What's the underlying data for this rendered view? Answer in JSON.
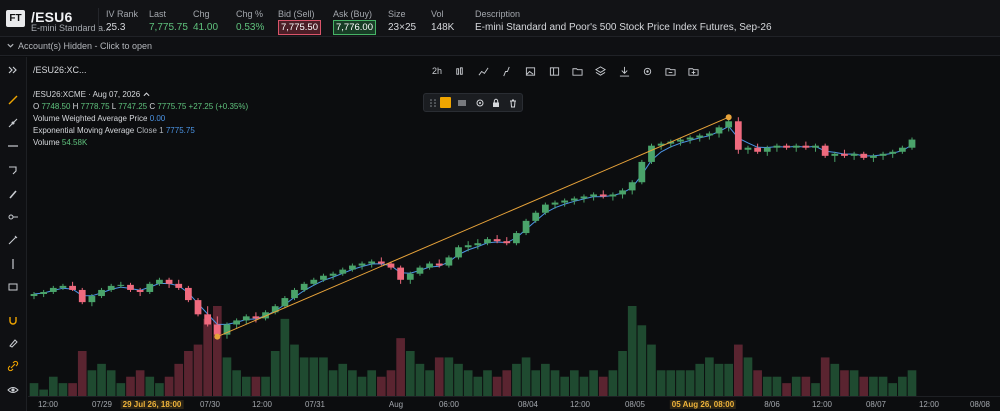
{
  "quote": {
    "logo": "FT",
    "symbol": "/ESU6",
    "short_desc": "E-mini Standard a...",
    "iv_rank_label": "IV Rank",
    "iv_rank": "25.3",
    "last_label": "Last",
    "last": "7,775.75",
    "chg_label": "Chg",
    "chg": "41.00",
    "chg_pct_label": "Chg %",
    "chg_pct": "0.53%",
    "bid_label": "Bid (Sell)",
    "bid": "7,775.50",
    "ask_label": "Ask (Buy)",
    "ask": "7,776.00",
    "size_label": "Size",
    "size": "23×25",
    "vol_label": "Vol",
    "vol": "148K",
    "desc_label": "Description",
    "desc": "E-mini Standard and Poor's 500 Stock Price Index Futures, Sep-26",
    "colors": {
      "up": "#5fc27d",
      "bid_box": "#d9546a",
      "ask_box": "#46b366"
    }
  },
  "account": {
    "text": "Account(s) Hidden - Click to open"
  },
  "toolbar": {
    "symbol_field": "/ESU26:XC...",
    "interval": "2h",
    "icons": [
      "candles-icon",
      "line-chart-icon",
      "indicator-icon",
      "image-icon",
      "layout-icon",
      "folder-icon",
      "layers-icon",
      "download-icon",
      "settings-icon",
      "folder-open-icon",
      "folder-add-icon"
    ]
  },
  "left_tools": [
    "collapse-icon",
    "line-tool-icon",
    "path-tool-icon",
    "horizontal-line-icon",
    "measure-icon",
    "brush-icon",
    "node-tool-icon",
    "pen-icon",
    "vertical-line-icon",
    "callout-icon",
    "magnet-icon",
    "eraser-icon",
    "link-icon",
    "eye-icon"
  ],
  "legend": {
    "title": "/ESU26:XCME · Aug 07, 2026",
    "o_label": "O",
    "o": "7748.50",
    "h_label": "H",
    "h": "7778.75",
    "l_label": "L",
    "l": "7747.25",
    "c_label": "C",
    "c": "7775.75",
    "change": "+27.25 (+0.35%)",
    "vwap_label": "Volume Weighted Average Price",
    "vwap": "0.00",
    "ema_label": "Exponential Moving Average",
    "ema_params": "Close  1",
    "ema": "7775.75",
    "volume_label": "Volume",
    "volume": "54.58K"
  },
  "drawing_toolbar": {
    "color": "#f0a500",
    "icons": [
      "drag-handle-icon",
      "color-swatch-icon",
      "line-style-icon",
      "settings-icon",
      "lock-icon",
      "trash-icon"
    ]
  },
  "time_axis": [
    {
      "label": "12:00"
    },
    {
      "label": "07/29"
    },
    {
      "label": "29 Jul 26, 18:00",
      "highlight": true
    },
    {
      "label": "07/30"
    },
    {
      "label": "12:00"
    },
    {
      "label": "07/31"
    },
    {
      "label": "Aug"
    },
    {
      "label": "06:00"
    },
    {
      "label": "08/04"
    },
    {
      "label": "12:00"
    },
    {
      "label": "08/05"
    },
    {
      "label": "05 Aug 26, 08:00",
      "highlight": true
    },
    {
      "label": "8/06"
    },
    {
      "label": "12:00"
    },
    {
      "label": "08/07"
    },
    {
      "label": "12:00"
    },
    {
      "label": "08/08"
    }
  ],
  "chart_data": {
    "type": "candlestick",
    "colors": {
      "up": "#4aa36a",
      "down": "#ef6a7e",
      "vol_up": "#1f4a30",
      "vol_down": "#5a2430",
      "trendline": "#e8a33a",
      "ema": "#4c95e6"
    },
    "candles": [
      [
        100,
        104,
        97,
        102,
        2
      ],
      [
        102,
        106,
        99,
        104,
        1
      ],
      [
        104,
        110,
        102,
        108,
        3
      ],
      [
        108,
        112,
        106,
        110,
        2
      ],
      [
        110,
        114,
        105,
        106,
        2
      ],
      [
        106,
        108,
        92,
        94,
        7
      ],
      [
        94,
        102,
        90,
        100,
        4
      ],
      [
        100,
        108,
        98,
        106,
        5
      ],
      [
        106,
        112,
        104,
        110,
        4
      ],
      [
        110,
        114,
        108,
        111,
        2
      ],
      [
        111,
        113,
        104,
        106,
        3
      ],
      [
        106,
        108,
        100,
        104,
        4
      ],
      [
        104,
        114,
        102,
        112,
        3
      ],
      [
        112,
        118,
        110,
        116,
        2
      ],
      [
        116,
        118,
        108,
        112,
        3
      ],
      [
        112,
        116,
        106,
        108,
        5
      ],
      [
        108,
        110,
        94,
        96,
        7
      ],
      [
        96,
        98,
        80,
        82,
        8
      ],
      [
        82,
        90,
        70,
        72,
        12
      ],
      [
        72,
        80,
        60,
        62,
        14
      ],
      [
        62,
        74,
        58,
        72,
        6
      ],
      [
        72,
        78,
        68,
        76,
        4
      ],
      [
        76,
        82,
        72,
        80,
        3
      ],
      [
        80,
        84,
        74,
        78,
        3
      ],
      [
        78,
        86,
        76,
        84,
        3
      ],
      [
        84,
        92,
        82,
        90,
        7
      ],
      [
        90,
        100,
        88,
        98,
        12
      ],
      [
        98,
        108,
        96,
        106,
        8
      ],
      [
        106,
        114,
        104,
        112,
        6
      ],
      [
        112,
        118,
        110,
        116,
        6
      ],
      [
        116,
        122,
        114,
        120,
        6
      ],
      [
        120,
        124,
        116,
        122,
        4
      ],
      [
        122,
        128,
        120,
        126,
        5
      ],
      [
        126,
        132,
        124,
        130,
        4
      ],
      [
        130,
        134,
        126,
        132,
        3
      ],
      [
        132,
        136,
        128,
        134,
        4
      ],
      [
        134,
        138,
        130,
        132,
        3
      ],
      [
        132,
        134,
        126,
        128,
        4
      ],
      [
        128,
        130,
        112,
        116,
        9
      ],
      [
        116,
        124,
        112,
        122,
        7
      ],
      [
        122,
        130,
        120,
        128,
        5
      ],
      [
        128,
        134,
        126,
        132,
        4
      ],
      [
        132,
        136,
        128,
        130,
        6
      ],
      [
        130,
        140,
        128,
        138,
        6
      ],
      [
        138,
        150,
        136,
        148,
        5
      ],
      [
        148,
        154,
        144,
        150,
        4
      ],
      [
        150,
        156,
        146,
        152,
        3
      ],
      [
        152,
        158,
        150,
        156,
        4
      ],
      [
        156,
        160,
        152,
        154,
        3
      ],
      [
        154,
        158,
        150,
        152,
        4
      ],
      [
        152,
        164,
        150,
        162,
        5
      ],
      [
        162,
        176,
        160,
        174,
        6
      ],
      [
        174,
        184,
        172,
        182,
        4
      ],
      [
        182,
        192,
        180,
        190,
        5
      ],
      [
        190,
        194,
        186,
        192,
        4
      ],
      [
        192,
        196,
        188,
        194,
        3
      ],
      [
        194,
        198,
        190,
        196,
        4
      ],
      [
        196,
        200,
        192,
        198,
        3
      ],
      [
        198,
        202,
        194,
        200,
        4
      ],
      [
        200,
        204,
        196,
        198,
        3
      ],
      [
        198,
        202,
        194,
        200,
        4
      ],
      [
        200,
        206,
        196,
        204,
        7
      ],
      [
        204,
        214,
        200,
        212,
        14
      ],
      [
        212,
        234,
        210,
        232,
        11
      ],
      [
        232,
        250,
        230,
        248,
        8
      ],
      [
        248,
        252,
        244,
        250,
        4
      ],
      [
        250,
        254,
        246,
        252,
        4
      ],
      [
        252,
        256,
        248,
        254,
        4
      ],
      [
        254,
        258,
        250,
        256,
        4
      ],
      [
        256,
        260,
        252,
        258,
        5
      ],
      [
        258,
        262,
        254,
        260,
        6
      ],
      [
        260,
        268,
        256,
        266,
        5
      ],
      [
        266,
        274,
        262,
        272,
        5
      ],
      [
        272,
        276,
        240,
        244,
        8
      ],
      [
        244,
        248,
        240,
        246,
        6
      ],
      [
        246,
        250,
        240,
        242,
        4
      ],
      [
        242,
        248,
        238,
        246,
        3
      ],
      [
        246,
        250,
        242,
        248,
        3
      ],
      [
        248,
        250,
        244,
        246,
        2
      ],
      [
        246,
        250,
        242,
        248,
        3
      ],
      [
        248,
        252,
        244,
        246,
        3
      ],
      [
        246,
        250,
        242,
        248,
        2
      ],
      [
        248,
        250,
        236,
        238,
        6
      ],
      [
        238,
        242,
        232,
        240,
        5
      ],
      [
        240,
        244,
        236,
        238,
        4
      ],
      [
        238,
        242,
        234,
        240,
        4
      ],
      [
        240,
        242,
        234,
        236,
        3
      ],
      [
        236,
        240,
        232,
        238,
        3
      ],
      [
        238,
        242,
        234,
        240,
        3
      ],
      [
        240,
        244,
        236,
        242,
        2
      ],
      [
        242,
        248,
        240,
        246,
        3
      ],
      [
        246,
        256,
        244,
        254,
        4
      ]
    ],
    "trendline": {
      "from_index": 19,
      "from_price": 60,
      "to_index": 72,
      "to_price": 276
    },
    "y_range": [
      40,
      290
    ],
    "grid": false
  }
}
